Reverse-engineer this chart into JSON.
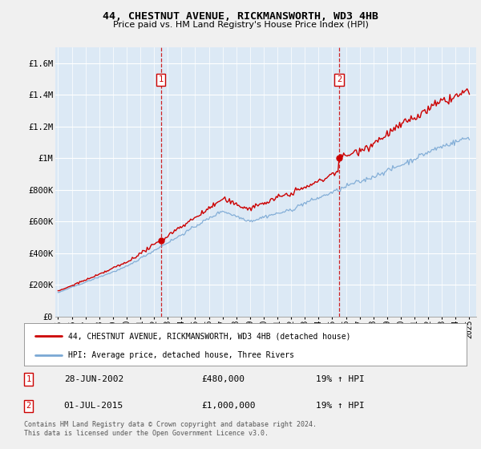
{
  "title": "44, CHESTNUT AVENUE, RICKMANSWORTH, WD3 4HB",
  "subtitle": "Price paid vs. HM Land Registry's House Price Index (HPI)",
  "legend_line1": "44, CHESTNUT AVENUE, RICKMANSWORTH, WD3 4HB (detached house)",
  "legend_line2": "HPI: Average price, detached house, Three Rivers",
  "annotation1_label": "1",
  "annotation1_date": "28-JUN-2002",
  "annotation1_price": "£480,000",
  "annotation1_hpi": "19% ↑ HPI",
  "annotation2_label": "2",
  "annotation2_date": "01-JUL-2015",
  "annotation2_price": "£1,000,000",
  "annotation2_hpi": "19% ↑ HPI",
  "sale1_date_num": 2002.49,
  "sale1_price": 480000,
  "sale2_date_num": 2015.5,
  "sale2_price": 1000000,
  "price_line_color": "#cc0000",
  "hpi_line_color": "#7aa8d4",
  "sale_dot_color": "#cc0000",
  "vline_color": "#cc0000",
  "plot_bg_color": "#dce9f5",
  "grid_color": "#ffffff",
  "fig_bg_color": "#f0f0f0",
  "footer_text": "Contains HM Land Registry data © Crown copyright and database right 2024.\nThis data is licensed under the Open Government Licence v3.0.",
  "ylim_min": 0,
  "ylim_max": 1700000,
  "yticks": [
    0,
    200000,
    400000,
    600000,
    800000,
    1000000,
    1200000,
    1400000,
    1600000
  ],
  "ytick_labels": [
    "£0",
    "£200K",
    "£400K",
    "£600K",
    "£800K",
    "£1M",
    "£1.2M",
    "£1.4M",
    "£1.6M"
  ],
  "xmin": 1994.8,
  "xmax": 2025.5
}
